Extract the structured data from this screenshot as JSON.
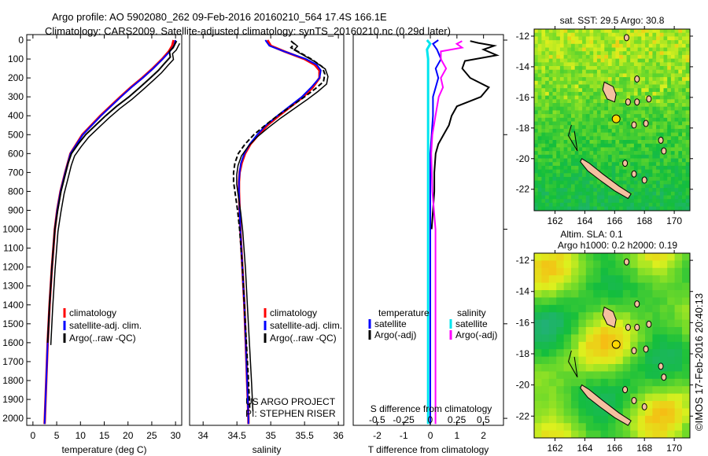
{
  "title_line1": "Argo profile: AO 5902080_262 09-Feb-2016 20160210_564 17.4S 166.1E",
  "title_line2": "Climatology: CARS2009. Satellite-adjusted climatology: synTS_20160210.nc (0.29d later)",
  "colors": {
    "climatology": "#ff0000",
    "satellite": "#0000ff",
    "argo": "#000000",
    "s_satellite": "#00e5ee",
    "s_argo": "#ff00ff"
  },
  "chart_data": [
    {
      "type": "line",
      "name": "temperature",
      "xlabel": "temperature (deg C)",
      "ylabel": "",
      "xlim": [
        -1.3,
        31.3
      ],
      "ylim": [
        0,
        2037
      ],
      "xticks": [
        "0",
        "5",
        "10",
        "15",
        "20",
        "25",
        "30"
      ],
      "xtick_values": [
        0,
        5,
        10,
        15,
        20,
        25,
        30
      ],
      "yticks": [
        0,
        100,
        200,
        300,
        400,
        500,
        600,
        700,
        800,
        900,
        1000,
        1100,
        1200,
        1300,
        1400,
        1500,
        1600,
        1700,
        1800,
        1900,
        2000
      ],
      "legend": [
        "climatology",
        "satellite-adj. clim.",
        "Argo(..raw -QC)"
      ],
      "series": [
        {
          "name": "climatology",
          "depth": [
            0,
            30,
            60,
            100,
            150,
            200,
            250,
            300,
            400,
            500,
            600,
            700,
            800,
            900,
            1000,
            1200,
            1400,
            1600,
            1800,
            2000,
            2030
          ],
          "values": [
            29.6,
            29.3,
            28.6,
            27.2,
            25.2,
            23.0,
            20.6,
            18.4,
            14.2,
            10.4,
            7.9,
            6.8,
            5.8,
            5.1,
            4.6,
            4.0,
            3.5,
            3.1,
            2.8,
            2.5,
            2.45
          ]
        },
        {
          "name": "satellite-adj. clim.",
          "depth": [
            0,
            30,
            60,
            100,
            150,
            200,
            250,
            300,
            400,
            500,
            600,
            700,
            800,
            900,
            1000,
            1200,
            1400,
            1600,
            1800,
            2000,
            2030
          ],
          "values": [
            30.0,
            29.7,
            28.8,
            27.3,
            25.3,
            23.1,
            20.7,
            18.5,
            14.3,
            10.5,
            7.9,
            6.8,
            5.8,
            5.1,
            4.6,
            4.0,
            3.5,
            3.1,
            2.8,
            2.5,
            2.45
          ]
        },
        {
          "name": "Argo(..raw -QC)",
          "depth": [
            5,
            20,
            40,
            60,
            90,
            120,
            160,
            200,
            250,
            300,
            350,
            400,
            450,
            500,
            550,
            600,
            650,
            700,
            800,
            900,
            1000,
            1200,
            1400,
            1600
          ],
          "values": [
            30.2,
            29.9,
            29.5,
            28.7,
            28.9,
            27.8,
            26.4,
            24.7,
            22.5,
            20.2,
            17.6,
            15.3,
            13.2,
            11.1,
            9.5,
            8.1,
            7.4,
            6.9,
            5.9,
            5.2,
            4.6,
            4.0,
            3.5,
            3.1
          ]
        }
      ]
    },
    {
      "type": "line",
      "name": "salinity",
      "xlabel": "salinity",
      "xlim": [
        33.8,
        36.08
      ],
      "ylim": [
        0,
        2037
      ],
      "xticks": [
        "34",
        "34.5",
        "35",
        "35.5",
        "36"
      ],
      "xtick_values": [
        34,
        34.5,
        35,
        35.5,
        36
      ],
      "legend": [
        "climatology",
        "satellite-adj. clim.",
        "Argo(..raw -QC)"
      ],
      "annotation": [
        "US ARGO PROJECT",
        "PI: STEPHEN RISER"
      ],
      "series": [
        {
          "name": "climatology",
          "depth": [
            0,
            30,
            60,
            100,
            130,
            160,
            200,
            250,
            300,
            350,
            400,
            450,
            500,
            550,
            600,
            650,
            700,
            750,
            800,
            900,
            1000,
            1200,
            1400,
            1600,
            1800,
            2000,
            2030
          ],
          "values": [
            34.95,
            35.0,
            35.2,
            35.5,
            35.65,
            35.72,
            35.72,
            35.62,
            35.48,
            35.3,
            35.12,
            34.95,
            34.82,
            34.7,
            34.62,
            34.57,
            34.54,
            34.53,
            34.53,
            34.54,
            34.55,
            34.58,
            34.61,
            34.63,
            34.65,
            34.67,
            34.67
          ]
        },
        {
          "name": "satellite-adj. clim.",
          "depth": [
            0,
            30,
            60,
            100,
            130,
            160,
            200,
            250,
            300,
            350,
            400,
            450,
            500,
            550,
            600,
            650,
            700,
            750,
            800,
            900,
            1000,
            1200,
            1400,
            1600,
            1800,
            2000,
            2030
          ],
          "values": [
            34.92,
            34.98,
            35.2,
            35.52,
            35.68,
            35.74,
            35.72,
            35.6,
            35.46,
            35.28,
            35.1,
            34.93,
            34.8,
            34.69,
            34.61,
            34.56,
            34.54,
            34.53,
            34.53,
            34.54,
            34.55,
            34.58,
            34.61,
            34.63,
            34.65,
            34.67,
            34.67
          ]
        },
        {
          "name": "Argo(..raw -QC)",
          "depth": [
            5,
            20,
            40,
            70,
            100,
            140,
            180,
            220,
            260,
            300,
            350,
            400,
            450,
            500,
            550,
            600,
            650,
            700,
            750,
            800,
            900,
            1000,
            1200,
            1400,
            1600,
            1800,
            1950
          ],
          "values": [
            35.3,
            35.35,
            35.3,
            35.45,
            35.6,
            35.76,
            35.8,
            35.78,
            35.65,
            35.5,
            35.3,
            35.1,
            34.92,
            34.75,
            34.62,
            34.52,
            34.47,
            34.45,
            34.45,
            34.47,
            34.51,
            34.54,
            34.58,
            34.61,
            34.64,
            34.67,
            34.69
          ]
        }
      ]
    },
    {
      "type": "line",
      "name": "difference",
      "xlabel": "T difference from climatology",
      "xlabel2": "S difference from climatology",
      "xlim": [
        -2.9,
        2.75
      ],
      "s_xlim": [
        -0.725,
        0.69
      ],
      "ylim": [
        0,
        2037
      ],
      "xticks": [
        "-2",
        "-1",
        "0",
        "1",
        "2"
      ],
      "xtick_values": [
        -2,
        -1,
        0,
        1,
        2
      ],
      "s_xticks": [
        "-0.5",
        "-0.25",
        "0",
        "0.25",
        "0.5"
      ],
      "s_xtick_values": [
        -0.5,
        -0.25,
        0,
        0.25,
        0.5
      ],
      "legend_headers": [
        "temperature",
        "salinity"
      ],
      "legend": [
        "satellite",
        "Argo(-adj)",
        "satellite",
        "Argo(-adj)"
      ],
      "series": [
        {
          "name": "T satellite",
          "depth": [
            0,
            20,
            50,
            100,
            150,
            200,
            300,
            400,
            500,
            600,
            700,
            800,
            1000,
            1500,
            2030
          ],
          "values": [
            0.3,
            0.1,
            0.25,
            0.4,
            0.2,
            0.3,
            0.1,
            0.1,
            0.05,
            0.0,
            0.0,
            0.0,
            0.0,
            0.0,
            0.0
          ]
        },
        {
          "name": "T Argo(-adj)",
          "depth": [
            5,
            15,
            30,
            50,
            80,
            110,
            150,
            200,
            250,
            300,
            350,
            400,
            450,
            500,
            550,
            600,
            700,
            800,
            900,
            1000
          ],
          "values": [
            1.5,
            1.8,
            2.4,
            2.0,
            2.5,
            1.3,
            1.2,
            1.5,
            2.2,
            1.9,
            1.0,
            0.8,
            0.7,
            0.5,
            0.3,
            0.2,
            0.15,
            0.15,
            0.1,
            0.05
          ]
        },
        {
          "name": "S satellite",
          "depth": [
            0,
            20,
            50,
            100,
            200,
            400,
            600,
            1000,
            1500,
            2030
          ],
          "values": [
            -0.03,
            0.0,
            -0.03,
            -0.02,
            -0.02,
            -0.02,
            -0.02,
            -0.02,
            -0.02,
            -0.02
          ]
        },
        {
          "name": "S Argo(-adj)",
          "depth": [
            5,
            20,
            40,
            60,
            100,
            150,
            200,
            250,
            300,
            400,
            500,
            600,
            800,
            1000,
            1500,
            2030
          ],
          "values": [
            0.3,
            0.25,
            0.3,
            0.1,
            0.1,
            0.15,
            0.1,
            0.12,
            0.08,
            0.05,
            0.02,
            0.01,
            0.02,
            0.05,
            0.05,
            0.05
          ]
        }
      ]
    }
  ],
  "maps": [
    {
      "title": "sat. SST: 29.5 Argo: 30.8",
      "subtitle": "",
      "lon_ticks": [
        "162",
        "164",
        "166",
        "168",
        "170"
      ],
      "lat_ticks": [
        "-12",
        "-14",
        "-16",
        "-18",
        "-20",
        "-22"
      ],
      "argo_lon": 166.1,
      "argo_lat": -17.4
    },
    {
      "title": "Altim. SLA: 0.1",
      "subtitle": "Argo h1000: 0.2 h2000: 0.19",
      "lon_ticks": [
        "162",
        "164",
        "166",
        "168",
        "170"
      ],
      "lat_ticks": [
        "-12",
        "-14",
        "-16",
        "-18",
        "-20",
        "-22"
      ],
      "argo_lon": 166.1,
      "argo_lat": -17.4
    }
  ],
  "side_label": "©IMOS 17-Feb-2016 20:40:13"
}
